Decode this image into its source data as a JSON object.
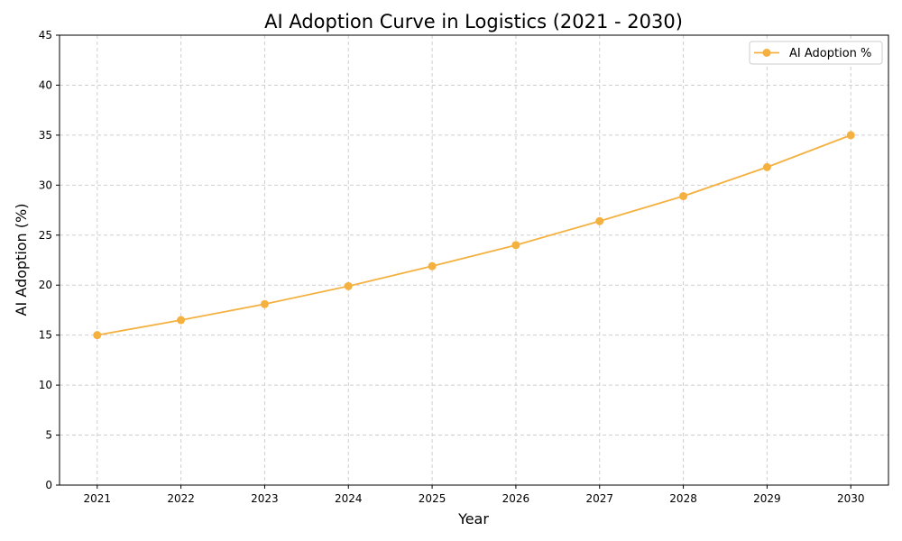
{
  "chart_data": {
    "type": "line",
    "title": "AI Adoption Curve in Logistics (2021 - 2030)",
    "xlabel": "Year",
    "ylabel": "AI Adoption (%)",
    "x": [
      2021,
      2022,
      2023,
      2024,
      2025,
      2026,
      2027,
      2028,
      2029,
      2030
    ],
    "xlim": [
      2020.55,
      2030.45
    ],
    "ylim": [
      0,
      45
    ],
    "yticks": [
      0,
      5,
      10,
      15,
      20,
      25,
      30,
      35,
      40,
      45
    ],
    "grid": true,
    "legend_placement": "top-right",
    "series": [
      {
        "name": "AI Adoption %",
        "color": "#F4B140",
        "marker": "circle",
        "values": [
          15.0,
          16.5,
          18.1,
          19.9,
          21.9,
          24.0,
          26.4,
          28.9,
          31.8,
          35.0
        ]
      }
    ]
  }
}
